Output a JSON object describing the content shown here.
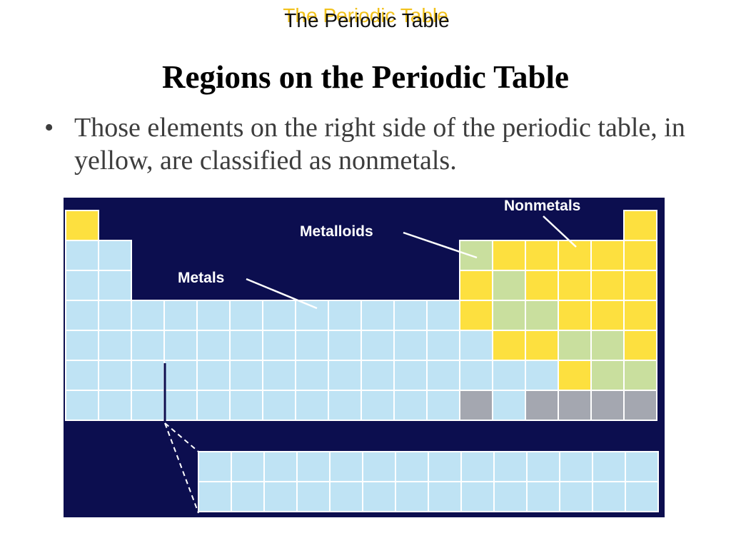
{
  "header": {
    "title": "The Periodic Table",
    "shadow_color": "#f2c21c"
  },
  "slide": {
    "title": "Regions on the Periodic Table",
    "bullets": [
      "Those elements on the right side of the periodic table, in yellow, are classified as nonmetals."
    ]
  },
  "diagram": {
    "labels": {
      "metals": "Metals",
      "metalloids": "Metalloids",
      "nonmetals": "Nonmetals"
    },
    "colors": {
      "background": "#0c0e4f",
      "metal": "#bfe3f4",
      "metalloid": "#c9df9e",
      "nonmetal": "#fde03f",
      "unknown": "#a4a7b0"
    }
  }
}
